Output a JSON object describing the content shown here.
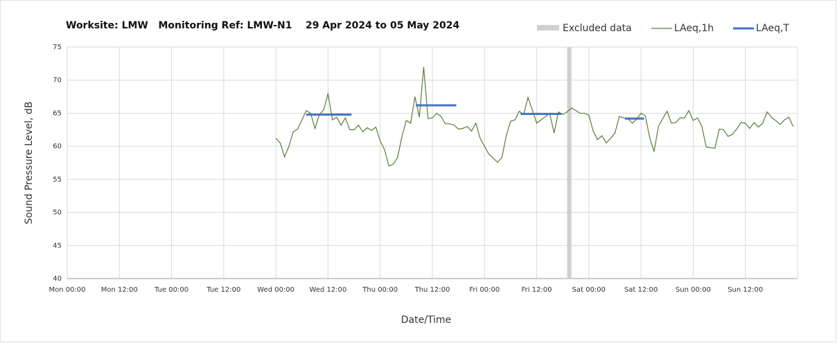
{
  "chart_data": {
    "type": "line",
    "title": "Worksite: LMW   Monitoring Ref: LMW-N1    29 Apr 2024 to 05 May 2024",
    "y_label": "Sound Pressure Level, dB",
    "x_label": "Date/Time",
    "xlim": [
      0,
      168
    ],
    "xticks": [
      {
        "value": 0,
        "label": "Mon 00:00"
      },
      {
        "value": 12,
        "label": "Mon 12:00"
      },
      {
        "value": 24,
        "label": "Tue 00:00"
      },
      {
        "value": 36,
        "label": "Tue 12:00"
      },
      {
        "value": 48,
        "label": "Wed 00:00"
      },
      {
        "value": 60,
        "label": "Wed 12:00"
      },
      {
        "value": 72,
        "label": "Thu 00:00"
      },
      {
        "value": 84,
        "label": "Thu 12:00"
      },
      {
        "value": 96,
        "label": "Fri 00:00"
      },
      {
        "value": 108,
        "label": "Fri 12:00"
      },
      {
        "value": 120,
        "label": "Sat 00:00"
      },
      {
        "value": 132,
        "label": "Sat 12:00"
      },
      {
        "value": 144,
        "label": "Sun 00:00"
      },
      {
        "value": 156,
        "label": "Sun 12:00"
      }
    ],
    "ylim": [
      40,
      75
    ],
    "yticks": [
      40,
      45,
      50,
      55,
      60,
      65,
      70,
      75
    ],
    "grid": true,
    "excluded": {
      "name": "Excluded data",
      "color": "#d0d0d0",
      "x": [
        115,
        116
      ]
    },
    "series": [
      {
        "name": "LAeq,1h",
        "color": "#5a7a3a",
        "x": [
          48,
          49,
          50,
          51,
          52,
          53,
          54,
          55,
          56,
          57,
          58,
          59,
          60,
          61,
          62,
          63,
          64,
          65,
          66,
          67,
          68,
          69,
          70,
          71,
          72,
          73,
          74,
          75,
          76,
          77,
          78,
          79,
          80,
          81,
          82,
          83,
          84,
          85,
          86,
          87,
          88,
          89,
          90,
          91,
          92,
          93,
          94,
          95,
          96,
          97,
          98,
          99,
          100,
          101,
          102,
          103,
          104,
          105,
          106,
          107,
          108,
          109,
          110,
          111,
          112,
          113,
          114,
          115,
          116,
          117,
          118,
          119,
          120,
          121,
          122,
          123,
          124,
          125,
          126,
          127,
          128,
          129,
          130,
          131,
          132,
          133,
          134,
          135,
          136,
          137,
          138,
          139,
          140,
          141,
          142,
          143,
          144,
          145,
          146,
          147,
          148,
          149,
          150,
          151,
          152,
          153,
          154,
          155,
          156,
          157,
          158,
          159,
          160,
          161,
          162,
          163,
          164,
          165,
          166,
          167
        ],
        "values": [
          61.2,
          60.5,
          58.4,
          60,
          62.2,
          62.6,
          64,
          65.4,
          65,
          62.7,
          64.8,
          65.5,
          68,
          64,
          64.4,
          63.2,
          64.3,
          62.5,
          62.5,
          63.2,
          62.2,
          62.8,
          62.4,
          62.9,
          60.8,
          59.5,
          57,
          57.3,
          58.3,
          61.5,
          63.9,
          63.5,
          67.5,
          64.4,
          72,
          64.2,
          64.3,
          65,
          64.5,
          63.4,
          63.4,
          63.2,
          62.6,
          62.7,
          63,
          62.3,
          63.5,
          61.2,
          60,
          58.8,
          58.2,
          57.6,
          58.3,
          61.6,
          63.8,
          64,
          65.3,
          64.8,
          67.4,
          65.5,
          63.5,
          64,
          64.5,
          65,
          62,
          65.2,
          64.8,
          65.2,
          65.8,
          65.4,
          65,
          65,
          64.7,
          62.3,
          61,
          61.6,
          60.5,
          61.2,
          62,
          64.5,
          64.3,
          64.2,
          63.5,
          64.1,
          65,
          64.6,
          61.3,
          59.2,
          63,
          64.2,
          65.3,
          63.5,
          63.6,
          64.3,
          64.3,
          65.4,
          63.9,
          64.3,
          63,
          59.9,
          59.8,
          59.7,
          62.6,
          62.5,
          61.5,
          61.8,
          62.6,
          63.6,
          63.5,
          62.7,
          63.6,
          62.9,
          63.5,
          65.2,
          64.4,
          63.9,
          63.3,
          64,
          64.4,
          63
        ]
      },
      {
        "name": "LAeq,T",
        "color": "#4472c4",
        "segments": [
          {
            "x": [
              55,
              65.4
            ],
            "value": 64.8
          },
          {
            "x": [
              80.2,
              89.5
            ],
            "value": 66.2
          },
          {
            "x": [
              104.3,
              113.7
            ],
            "value": 64.9
          },
          {
            "x": [
              128.3,
              132.7
            ],
            "value": 64.2
          }
        ]
      }
    ]
  }
}
